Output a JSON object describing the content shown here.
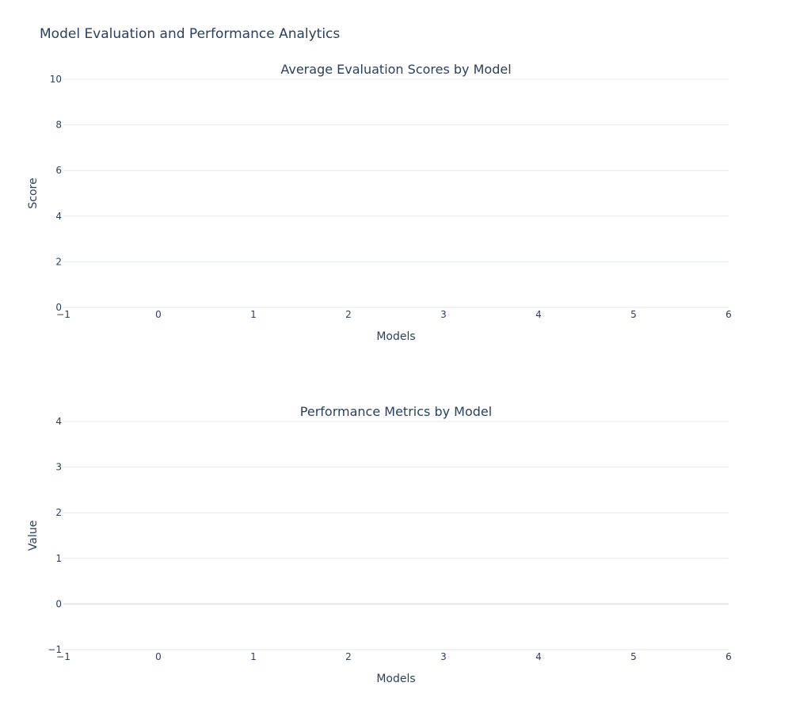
{
  "page": {
    "title": "Model Evaluation and Performance Analytics"
  },
  "colors": {
    "text": "#2a3f5f",
    "grid": "#e5ebf2",
    "zeroline": "#dfe6ee"
  },
  "chart_data": [
    {
      "type": "bar",
      "title": "Average Evaluation Scores by Model",
      "xlabel": "Models",
      "ylabel": "Score",
      "xlim": [
        -1,
        6
      ],
      "ylim": [
        0,
        10
      ],
      "x_ticks": [
        "−1",
        "0",
        "1",
        "2",
        "3",
        "4",
        "5",
        "6"
      ],
      "y_ticks": [
        "0",
        "2",
        "4",
        "6",
        "8",
        "10"
      ],
      "grid": true,
      "series": []
    },
    {
      "type": "bar",
      "title": "Performance Metrics by Model",
      "xlabel": "Models",
      "ylabel": "Value",
      "xlim": [
        -1,
        6
      ],
      "ylim": [
        -1,
        4
      ],
      "x_ticks": [
        "−1",
        "0",
        "1",
        "2",
        "3",
        "4",
        "5",
        "6"
      ],
      "y_ticks": [
        "−1",
        "0",
        "1",
        "2",
        "3",
        "4"
      ],
      "grid": true,
      "series": []
    }
  ]
}
